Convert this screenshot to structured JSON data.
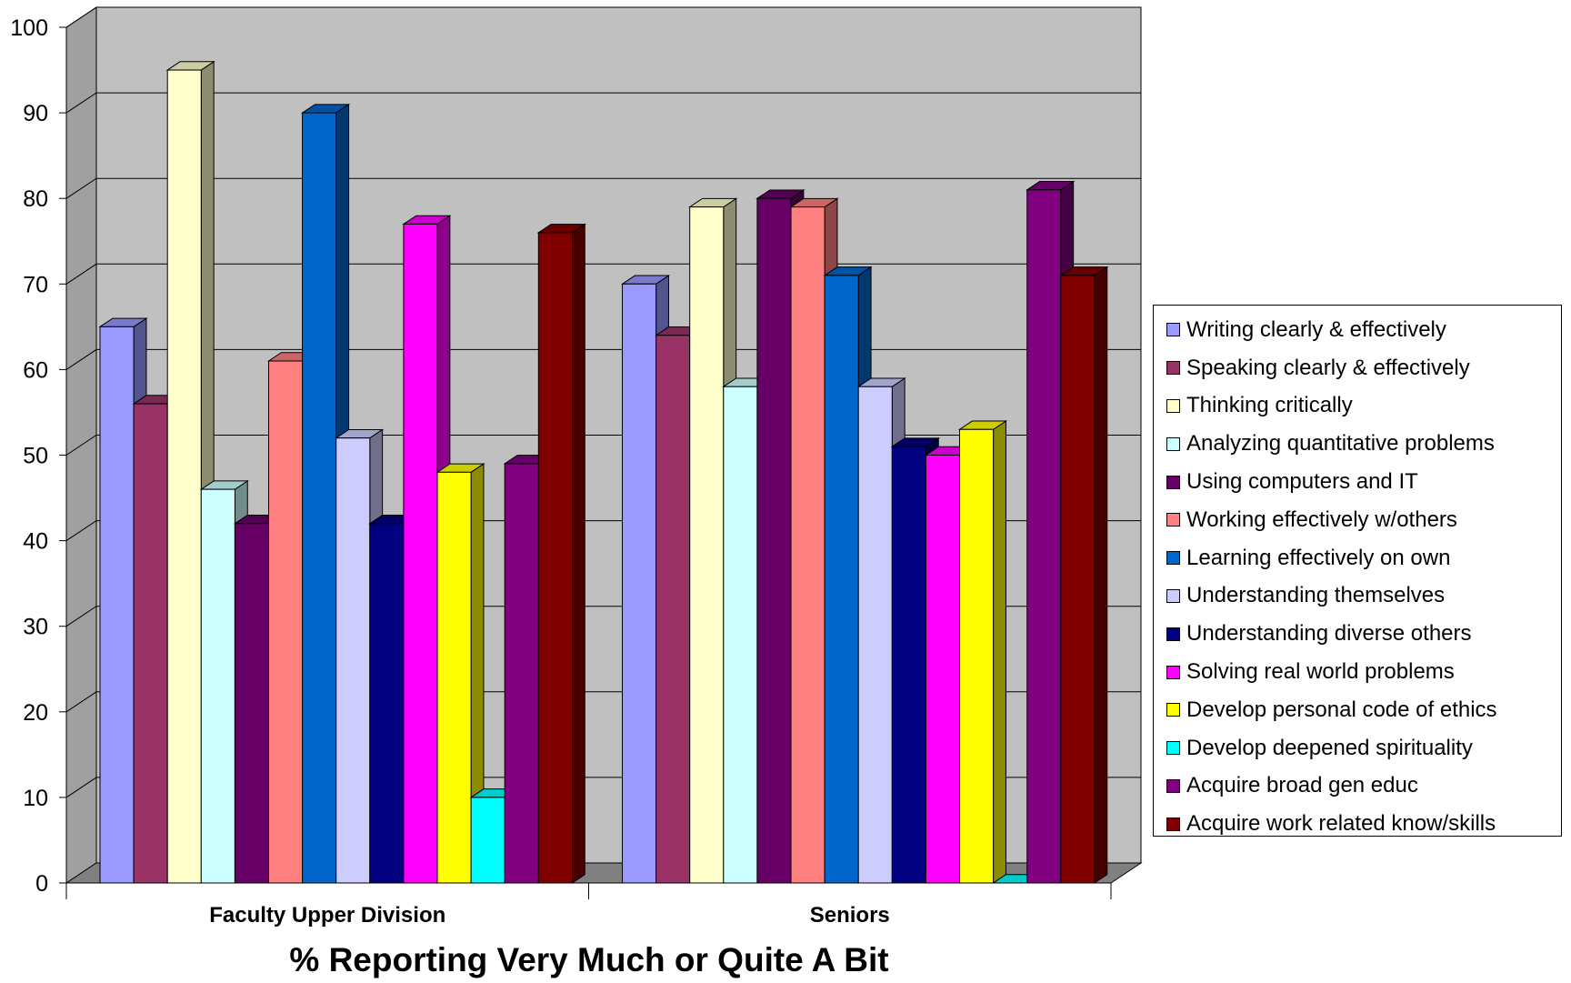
{
  "chart_data": {
    "type": "bar",
    "title": "",
    "xlabel": "% Reporting Very Much or Quite A Bit",
    "ylabel": "",
    "ylim": [
      0,
      100
    ],
    "yticks": [
      "0",
      "10",
      "20",
      "30",
      "40",
      "50",
      "60",
      "70",
      "80",
      "90",
      "100"
    ],
    "grid": true,
    "legend_position": "right",
    "categories": [
      "Faculty Upper Division",
      "Seniors"
    ],
    "series": [
      {
        "name": "Writing clearly & effectively",
        "color": "#9999ff",
        "values": [
          65,
          70
        ]
      },
      {
        "name": "Speaking clearly & effectively",
        "color": "#993366",
        "values": [
          56,
          64
        ]
      },
      {
        "name": "Thinking critically",
        "color": "#ffffcc",
        "values": [
          95,
          79
        ]
      },
      {
        "name": "Analyzing quantitative problems",
        "color": "#ccffff",
        "values": [
          46,
          58
        ]
      },
      {
        "name": "Using computers and IT",
        "color": "#660066",
        "values": [
          42,
          80
        ]
      },
      {
        "name": "Working effectively w/others",
        "color": "#ff8080",
        "values": [
          61,
          79
        ]
      },
      {
        "name": "Learning effectively on own",
        "color": "#0066cc",
        "values": [
          90,
          71
        ]
      },
      {
        "name": "Understanding themselves",
        "color": "#ccccff",
        "values": [
          52,
          58
        ]
      },
      {
        "name": "Understanding diverse others",
        "color": "#000080",
        "values": [
          42,
          51
        ]
      },
      {
        "name": "Solving real world problems",
        "color": "#ff00ff",
        "values": [
          77,
          50
        ]
      },
      {
        "name": "Develop personal code of ethics",
        "color": "#ffff00",
        "values": [
          48,
          53
        ]
      },
      {
        "name": "Develop deepened spirituality",
        "color": "#00ffff",
        "values": [
          10,
          0
        ]
      },
      {
        "name": "Acquire broad gen educ",
        "color": "#800080",
        "values": [
          49,
          81
        ]
      },
      {
        "name": "Acquire work related know/skills",
        "color": "#800000",
        "values": [
          76,
          71
        ]
      }
    ]
  }
}
